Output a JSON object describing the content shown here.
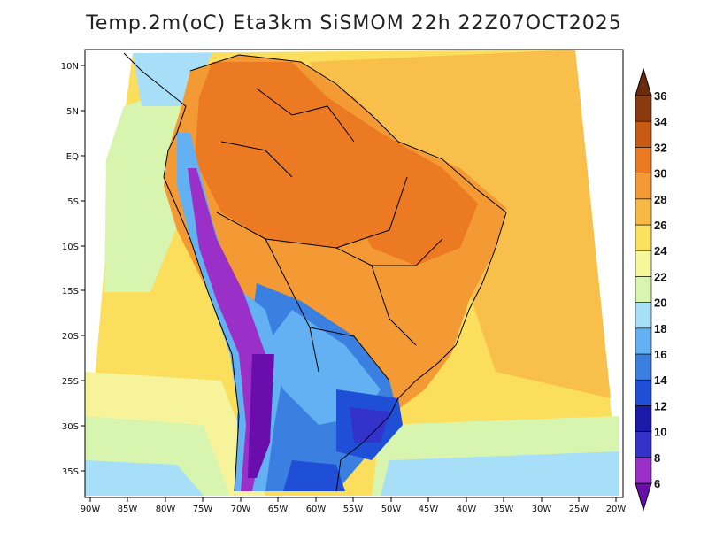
{
  "title": "Temp.2m(oC) Eta3km SiSMOM 22h 22Z07OCT2025",
  "map": {
    "lon_range": [
      -91,
      -19
    ],
    "lat_range": [
      -38,
      11
    ],
    "lon_ticks": [
      "90W",
      "85W",
      "80W",
      "75W",
      "70W",
      "65W",
      "60W",
      "55W",
      "50W",
      "45W",
      "40W",
      "35W",
      "30W",
      "25W",
      "20W"
    ],
    "lat_ticks": [
      "10N",
      "5N",
      "EQ",
      "5S",
      "10S",
      "15S",
      "20S",
      "25S",
      "30S",
      "35S"
    ]
  },
  "colorbar": {
    "levels": [
      "6",
      "8",
      "10",
      "12",
      "14",
      "16",
      "18",
      "20",
      "22",
      "24",
      "26",
      "28",
      "30",
      "32",
      "34",
      "36"
    ],
    "colors": [
      "#6a0dad",
      "#9b30c8",
      "#3333cc",
      "#1a1aa8",
      "#1f4fd6",
      "#3b7fe0",
      "#63b1f2",
      "#a8dff8",
      "#d8f5b0",
      "#f6f79a",
      "#fbe25e",
      "#f7b945",
      "#f39a35",
      "#ec7a22",
      "#c85a14",
      "#8b3a10",
      "#6b2a0a"
    ]
  }
}
